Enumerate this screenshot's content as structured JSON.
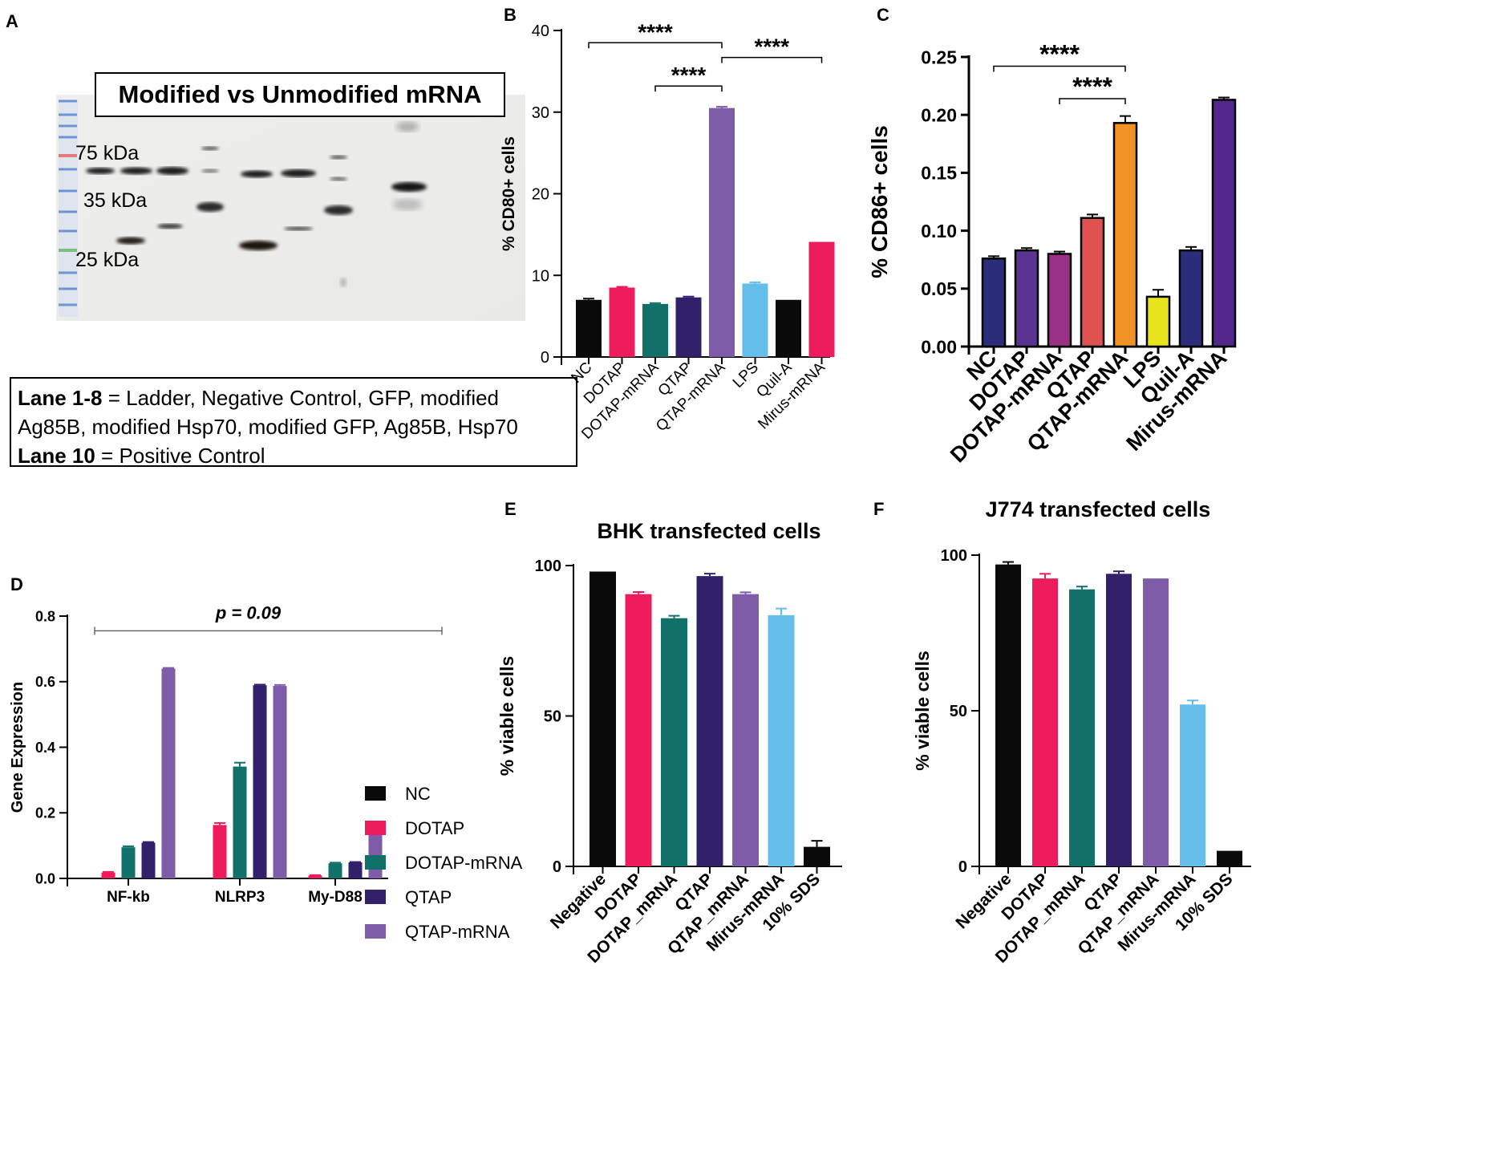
{
  "panel_letters": {
    "a": "A",
    "b": "B",
    "c": "C",
    "d": "D",
    "e": "E",
    "f": "F"
  },
  "blot": {
    "title": "Modified vs Unmodified mRNA",
    "marker_75": "75 kDa",
    "marker_35": "35 kDa",
    "marker_25": "25 kDa",
    "legend_line1_bold": "Lane 1-8",
    "legend_line1_rest": " = Ladder, Negative Control, GFP, modified",
    "legend_line2": "Ag85B, modified Hsp70, modified GFP, Ag85B, Hsp70",
    "legend_line3_bold": "Lane 10",
    "legend_line3_rest": " = Positive Control"
  },
  "colors": {
    "black": "#0a0a0a",
    "red": "#ee1c5c",
    "teal": "#12706a",
    "navy": "#33206b",
    "purple": "#7f5ca8",
    "lightblue": "#65bdea",
    "c_navy": "#2b2d7a",
    "c_purple": "#5a3490",
    "c_magenta": "#9a2f86",
    "c_salmon": "#e0524f",
    "c_orange": "#f39224",
    "c_yellow": "#e8e51c",
    "c_violet": "#52268a"
  },
  "chart_data": [
    {
      "id": "B",
      "type": "bar",
      "title": "",
      "ylabel": "% CD80+ cells",
      "xlabel": "",
      "ylim": [
        0,
        40
      ],
      "yticks": [
        0,
        10,
        20,
        30,
        40
      ],
      "categories": [
        "NC",
        "DOTAP",
        "DOTAP-mRNA",
        "QTAP",
        "QTAP-mRNA",
        "LPS",
        "Quil-A",
        "Mirus-mRNA"
      ],
      "values": [
        7.0,
        8.5,
        6.5,
        7.3,
        30.5,
        9.0,
        7.0,
        14.1
      ],
      "errors": [
        0.15,
        0.1,
        0.1,
        0.1,
        0.15,
        0.15,
        0,
        0
      ],
      "bar_colors": [
        "#0a0a0a",
        "#ee1c5c",
        "#12706a",
        "#33206b",
        "#7f5ca8",
        "#65bdea",
        "#0a0a0a",
        "#ee1c5c"
      ],
      "significance": [
        {
          "from": "NC",
          "to": "QTAP-mRNA",
          "y": 38.5,
          "label": "****"
        },
        {
          "from": "QTAP-mRNA",
          "to": "Mirus-mRNA",
          "y": 36.7,
          "label": "****"
        },
        {
          "from": "DOTAP-mRNA",
          "to": "QTAP-mRNA",
          "y": 33.2,
          "label": "****"
        }
      ]
    },
    {
      "id": "C",
      "type": "bar",
      "title": "",
      "ylabel": "% CD86+ cells",
      "xlabel": "",
      "ylim": [
        0,
        0.25
      ],
      "yticks": [
        "0.00",
        "0.05",
        "0.10",
        "0.15",
        "0.20",
        "0.25"
      ],
      "categories": [
        "NC",
        "DOTAP",
        "DOTAP-mRNA",
        "QTAP",
        "QTAP-mRNA",
        "LPS",
        "Quil-A",
        "Mirus-mRNA"
      ],
      "values": [
        0.076,
        0.083,
        0.08,
        0.111,
        0.193,
        0.043,
        0.083,
        0.213
      ],
      "errors": [
        0.002,
        0.002,
        0.002,
        0.003,
        0.006,
        0.006,
        0.003,
        0.002
      ],
      "bar_colors": [
        "#2b2d7a",
        "#5a3490",
        "#9a2f86",
        "#e0524f",
        "#f39224",
        "#e8e51c",
        "#2b2d7a",
        "#52268a"
      ],
      "significance": [
        {
          "from": "NC",
          "to": "QTAP-mRNA",
          "y": 0.242,
          "label": "****"
        },
        {
          "from": "DOTAP-mRNA",
          "to": "QTAP-mRNA",
          "y": 0.214,
          "label": "****"
        }
      ]
    },
    {
      "id": "D",
      "type": "bar",
      "title": "",
      "ylabel": "Gene Expression",
      "xlabel": "",
      "ylim": [
        0,
        0.8
      ],
      "yticks": [
        "0.0",
        "0.2",
        "0.4",
        "0.6",
        "0.8"
      ],
      "categories": [
        "NF-kb",
        "NLRP3",
        "My-D88"
      ],
      "series": [
        {
          "name": "NC",
          "color": "#0a0a0a",
          "values": [
            0,
            0,
            0
          ],
          "errors": [
            0,
            0,
            0
          ]
        },
        {
          "name": "DOTAP",
          "color": "#ee1c5c",
          "values": [
            0.018,
            0.163,
            0.009
          ],
          "errors": [
            0.002,
            0.006,
            0.001
          ]
        },
        {
          "name": "DOTAP-mRNA",
          "color": "#12706a",
          "values": [
            0.095,
            0.341,
            0.046
          ],
          "errors": [
            0.003,
            0.012,
            0.002
          ]
        },
        {
          "name": "QTAP",
          "color": "#33206b",
          "values": [
            0.109,
            0.589,
            0.049
          ],
          "errors": [
            0.002,
            0.002,
            0.001
          ]
        },
        {
          "name": "QTAP-mRNA",
          "color": "#7f5ca8",
          "values": [
            0.64,
            0.587,
            0.168
          ],
          "errors": [
            0.002,
            0.003,
            0.001
          ]
        }
      ],
      "annotation": {
        "from": "NF-kb",
        "to": "My-D88",
        "y": 0.755,
        "label": "p = 0.09"
      },
      "legend_position": "right"
    },
    {
      "id": "E",
      "type": "bar",
      "title": "BHK transfected cells",
      "ylabel": "% viable cells",
      "xlabel": "",
      "ylim": [
        0,
        100
      ],
      "yticks": [
        0,
        50,
        100
      ],
      "categories": [
        "Negative",
        "DOTAP",
        "DOTAP_mRNA",
        "QTAP",
        "QTAP_mRNA",
        "Mirus-mRNA",
        "10% SDS"
      ],
      "values": [
        98,
        90.5,
        82.5,
        96.5,
        90.5,
        83.5,
        6.5
      ],
      "errors": [
        0,
        0.7,
        0.8,
        0.8,
        0.6,
        2.2,
        2.0
      ],
      "bar_colors": [
        "#0a0a0a",
        "#ee1c5c",
        "#12706a",
        "#33206b",
        "#7f5ca8",
        "#65bdea",
        "#0a0a0a"
      ]
    },
    {
      "id": "F",
      "type": "bar",
      "title": "J774 transfected cells",
      "ylabel": "% viable cells",
      "xlabel": "",
      "ylim": [
        0,
        100
      ],
      "yticks": [
        0,
        50,
        100
      ],
      "categories": [
        "Negative",
        "DOTAP",
        "DOTAP_mRNA",
        "QTAP",
        "QTAP_mRNA",
        "Mirus-mRNA",
        "10% SDS"
      ],
      "values": [
        97,
        92.5,
        89,
        94,
        92.5,
        52,
        5
      ],
      "errors": [
        0.8,
        1.5,
        0.9,
        0.8,
        0,
        1.3,
        0
      ],
      "bar_colors": [
        "#0a0a0a",
        "#ee1c5c",
        "#12706a",
        "#33206b",
        "#7f5ca8",
        "#65bdea",
        "#0a0a0a"
      ]
    }
  ]
}
